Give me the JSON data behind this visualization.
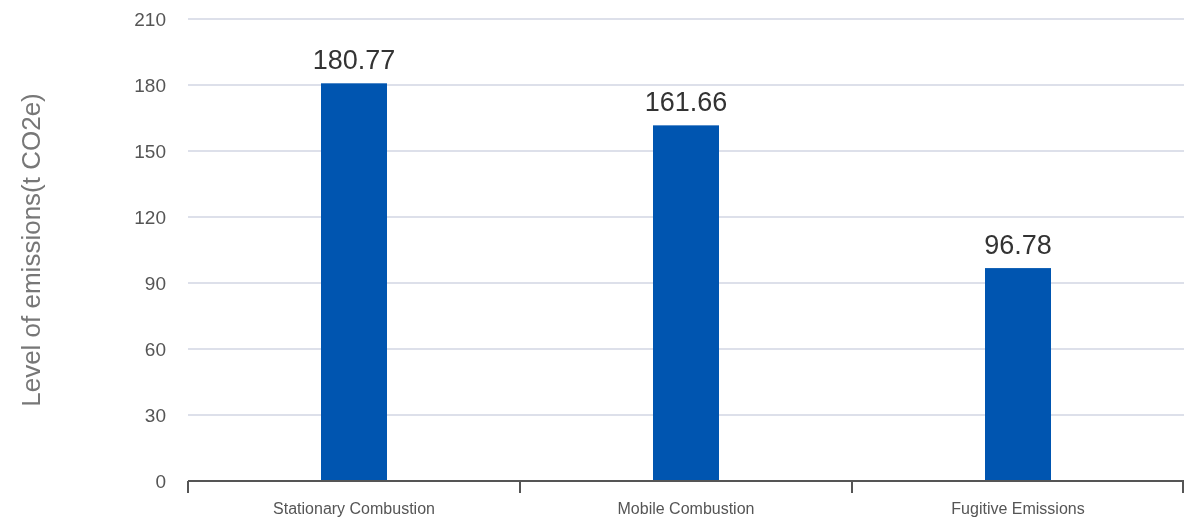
{
  "chart_data": {
    "type": "bar",
    "ylabel": "Level of emissions(t CO2e)",
    "categories": [
      "Stationary Combustion",
      "Mobile Combustion",
      "Fugitive Emissions"
    ],
    "series": [
      {
        "color": "#0055b0",
        "values": [
          180.77,
          161.66,
          96.78
        ]
      }
    ],
    "ylim": [
      0,
      210
    ],
    "yticks": [
      0,
      30,
      60,
      90,
      120,
      150,
      180,
      210
    ],
    "grid": "y",
    "data_labels": true
  }
}
